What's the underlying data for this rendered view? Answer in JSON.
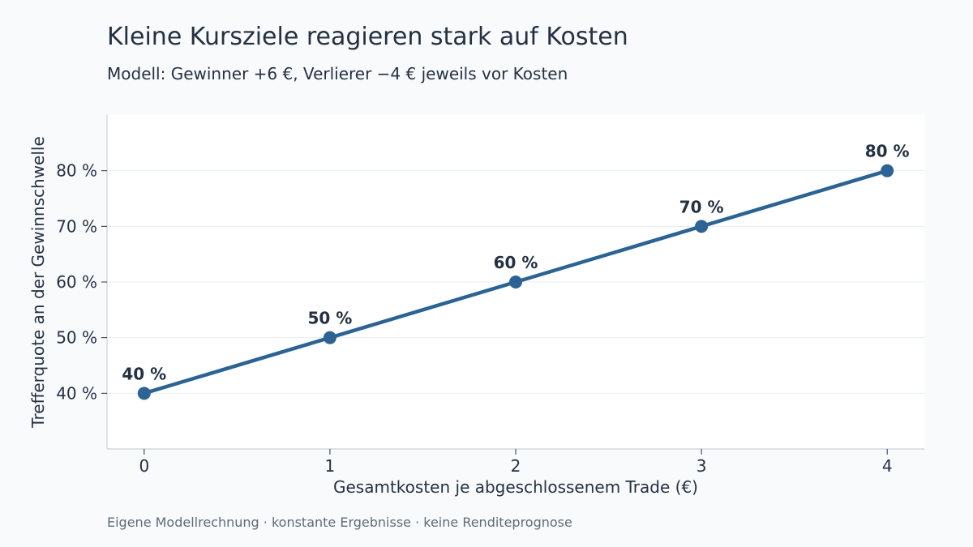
{
  "header": {
    "title": "Kleine Kursziele reagieren stark auf Kosten",
    "subtitle": "Modell: Gewinner +6 €, Verlierer −4 € jeweils vor Kosten"
  },
  "footer": {
    "note": "Eigene Modellrechnung · konstante Ergebnisse · keine Renditeprognose"
  },
  "colors": {
    "line": "#2b6494",
    "text": "#253142",
    "grid": "#e9edf1",
    "axis": "#c9d1d9",
    "plot_bg": "#ffffff",
    "page_bg": "#f8fafc"
  },
  "chart_data": {
    "type": "line",
    "title": "Kleine Kursziele reagieren stark auf Kosten",
    "subtitle": "Modell: Gewinner +6 €, Verlierer −4 € jeweils vor Kosten",
    "xlabel": "Gesamtkosten je abgeschlossenem Trade (€)",
    "ylabel": "Trefferquote an der Gewinnschwelle",
    "x": [
      0,
      1,
      2,
      3,
      4
    ],
    "y": [
      40,
      50,
      60,
      70,
      80
    ],
    "data_labels": [
      "40 %",
      "50 %",
      "60 %",
      "70 %",
      "80 %"
    ],
    "xlim": [
      -0.2,
      4.2
    ],
    "ylim": [
      30,
      90
    ],
    "xticks": [
      0,
      1,
      2,
      3,
      4
    ],
    "xtick_labels": [
      "0",
      "1",
      "2",
      "3",
      "4"
    ],
    "yticks": [
      40,
      50,
      60,
      70,
      80
    ],
    "ytick_labels": [
      "40 %",
      "50 %",
      "60 %",
      "70 %",
      "80 %"
    ],
    "grid": "horizontal",
    "legend": "none"
  }
}
